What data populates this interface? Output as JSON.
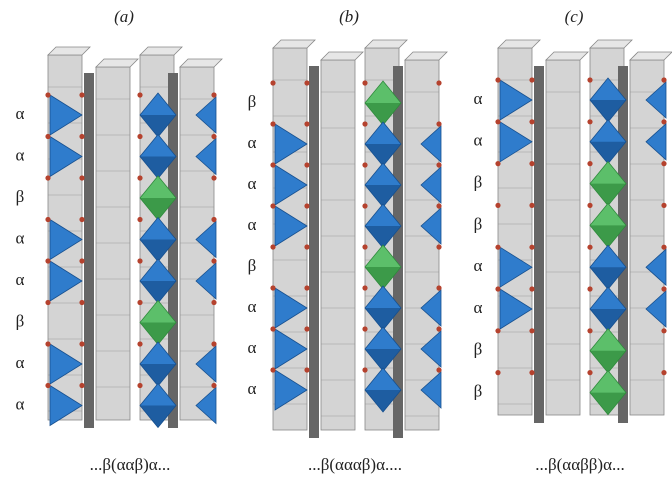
{
  "panels": [
    {
      "label": "(a)",
      "layers": [
        "α",
        "α",
        "β",
        "α",
        "α",
        "β",
        "α",
        "α"
      ],
      "sequence": "...β(ααβ)α..."
    },
    {
      "label": "(b)",
      "layers": [
        "β",
        "α",
        "α",
        "α",
        "β",
        "α",
        "α",
        "α"
      ],
      "sequence": "...β(αααβ)α...."
    },
    {
      "label": "(c)",
      "layers": [
        "α",
        "α",
        "β",
        "β",
        "α",
        "α",
        "β",
        "β"
      ],
      "sequence": "...β(ααββ)α..."
    }
  ]
}
